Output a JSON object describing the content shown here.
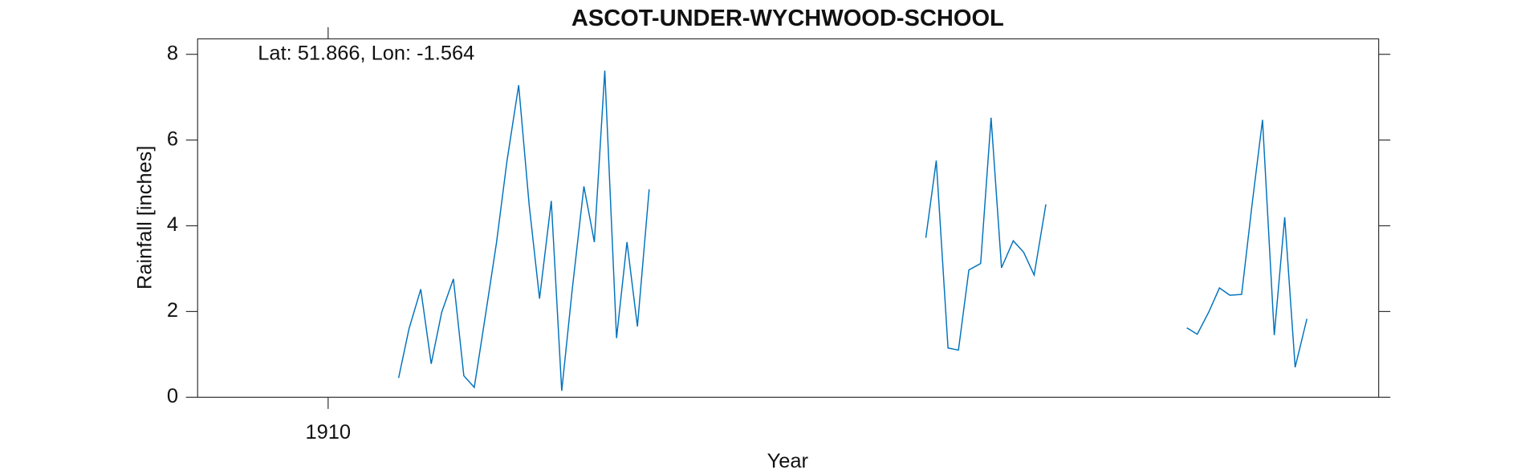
{
  "chart_data": {
    "type": "line",
    "title": "ASCOT-UNDER-WYCHWOOD-SCHOOL",
    "annotation": "Lat: 51.866, Lon: -1.564",
    "x_label": "Year",
    "y_label": "Rainfall [inches]",
    "xlim": [
      1909,
      1918.05
    ],
    "xticks": [
      1910
    ],
    "ylim": [
      0,
      8.36
    ],
    "yticks": [
      0,
      2,
      4,
      6,
      8
    ],
    "grid": false,
    "x": [
      1910.54,
      1910.62,
      1910.71,
      1910.79,
      1910.87,
      1910.96,
      1911.04,
      1911.12,
      1911.21,
      1911.29,
      1911.37,
      1911.46,
      1911.54,
      1911.62,
      1911.71,
      1911.79,
      1911.87,
      1911.96,
      1912.04,
      1912.12,
      1912.21,
      1912.29,
      1912.37,
      1912.46,
      1912.54,
      1914.58,
      1914.66,
      1914.75,
      1914.83,
      1914.91,
      1915.0,
      1915.08,
      1915.16,
      1915.25,
      1915.33,
      1915.41,
      1915.5,
      1915.58,
      1916.58,
      1916.66,
      1916.75,
      1916.83,
      1916.91,
      1917.0,
      1917.08,
      1917.16,
      1917.25,
      1917.33,
      1917.41,
      1917.5
    ],
    "series": [
      {
        "name": "Rainfall",
        "color": "#0072bd",
        "values": [
          0.45,
          1.6,
          2.52,
          0.78,
          1.98,
          2.76,
          0.5,
          0.23,
          2.0,
          3.6,
          5.5,
          7.28,
          4.5,
          2.3,
          4.58,
          0.15,
          2.5,
          4.92,
          3.62,
          7.62,
          1.38,
          3.62,
          1.65,
          4.85,
          null,
          3.72,
          5.52,
          1.15,
          1.1,
          2.97,
          3.12,
          6.52,
          3.02,
          3.65,
          3.38,
          2.85,
          4.5,
          null,
          1.62,
          1.47,
          2.0,
          2.55,
          2.38,
          2.4,
          4.5,
          6.47,
          1.45,
          4.2,
          0.7,
          1.83
        ]
      }
    ]
  }
}
